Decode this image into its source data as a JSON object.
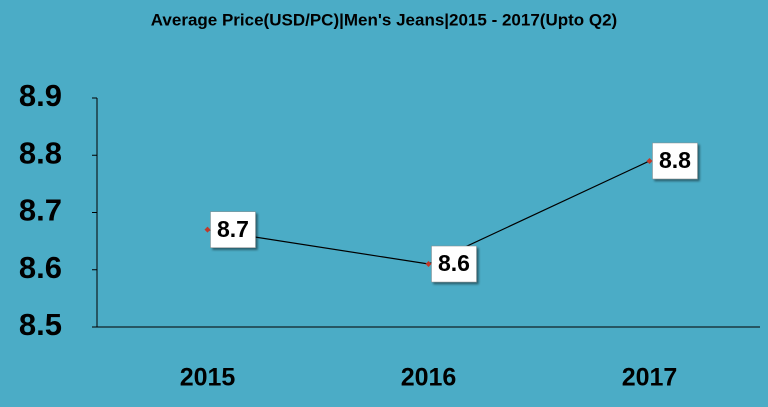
{
  "chart_data": {
    "type": "line",
    "title": "Average Price(USD/PC)|Men's Jeans|2015 - 2017(Upto Q2)",
    "categories": [
      "2015",
      "2016",
      "2017"
    ],
    "values": [
      8.67,
      8.61,
      8.79
    ],
    "value_labels": [
      "8.7",
      "8.6",
      "8.8"
    ],
    "color": "#000000",
    "marker_color": "#c0392b",
    "ylim": [
      8.5,
      8.9
    ],
    "yticks": [
      8.5,
      8.6,
      8.7,
      8.8,
      8.9
    ],
    "grid": false
  }
}
